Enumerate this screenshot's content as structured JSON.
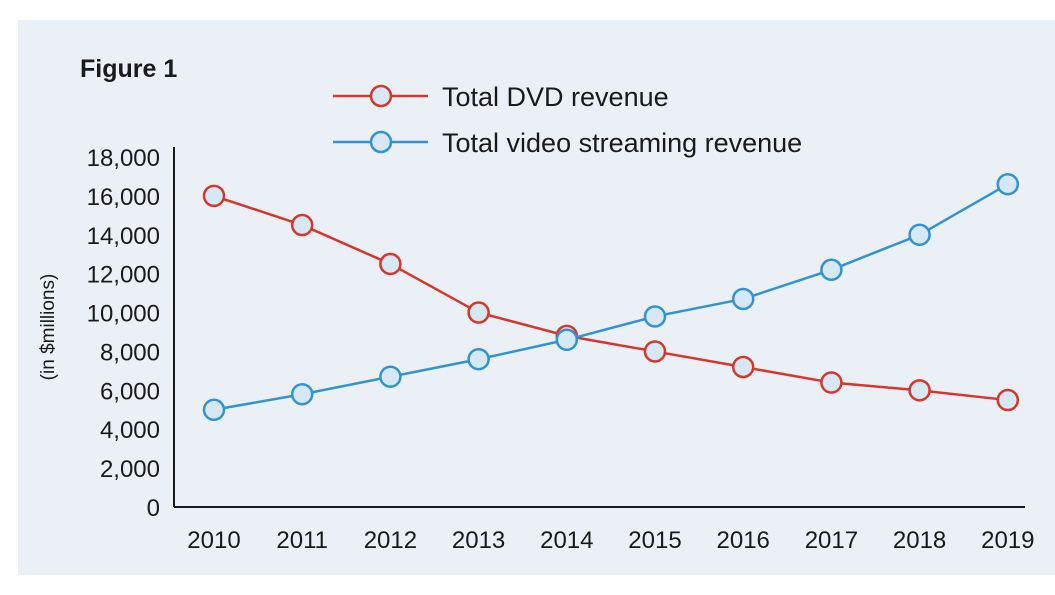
{
  "figure": {
    "label": "Figure 1"
  },
  "colors": {
    "dvd": "#d9362b",
    "streaming": "#2f93d6",
    "axis": "#1a1a1a",
    "panel": "#ebf0f7",
    "marker_fill": "#d6e8f5"
  },
  "chart_data": {
    "type": "line",
    "title": "",
    "xlabel": "",
    "ylabel": "(in $millions)",
    "x": [
      "2010",
      "2011",
      "2012",
      "2013",
      "2014",
      "2015",
      "2016",
      "2017",
      "2018",
      "2019"
    ],
    "ylim": [
      0,
      18000
    ],
    "yticks": [
      0,
      2000,
      4000,
      6000,
      8000,
      10000,
      12000,
      14000,
      16000,
      18000
    ],
    "ytick_labels": [
      "0",
      "2,000",
      "4,000",
      "6,000",
      "8,000",
      "10,000",
      "12,000",
      "14,000",
      "16,000",
      "18,000"
    ],
    "grid": false,
    "legend": "top",
    "series": [
      {
        "name": "Total DVD revenue",
        "color": "#d9362b",
        "marker": "circle",
        "values": [
          16000,
          14500,
          12500,
          10000,
          8800,
          8000,
          7200,
          6400,
          6000,
          5500
        ]
      },
      {
        "name": "Total video streaming revenue",
        "color": "#2f93d6",
        "marker": "circle",
        "values": [
          5000,
          5800,
          6700,
          7600,
          8600,
          9800,
          10700,
          12200,
          14000,
          16600
        ]
      }
    ]
  }
}
